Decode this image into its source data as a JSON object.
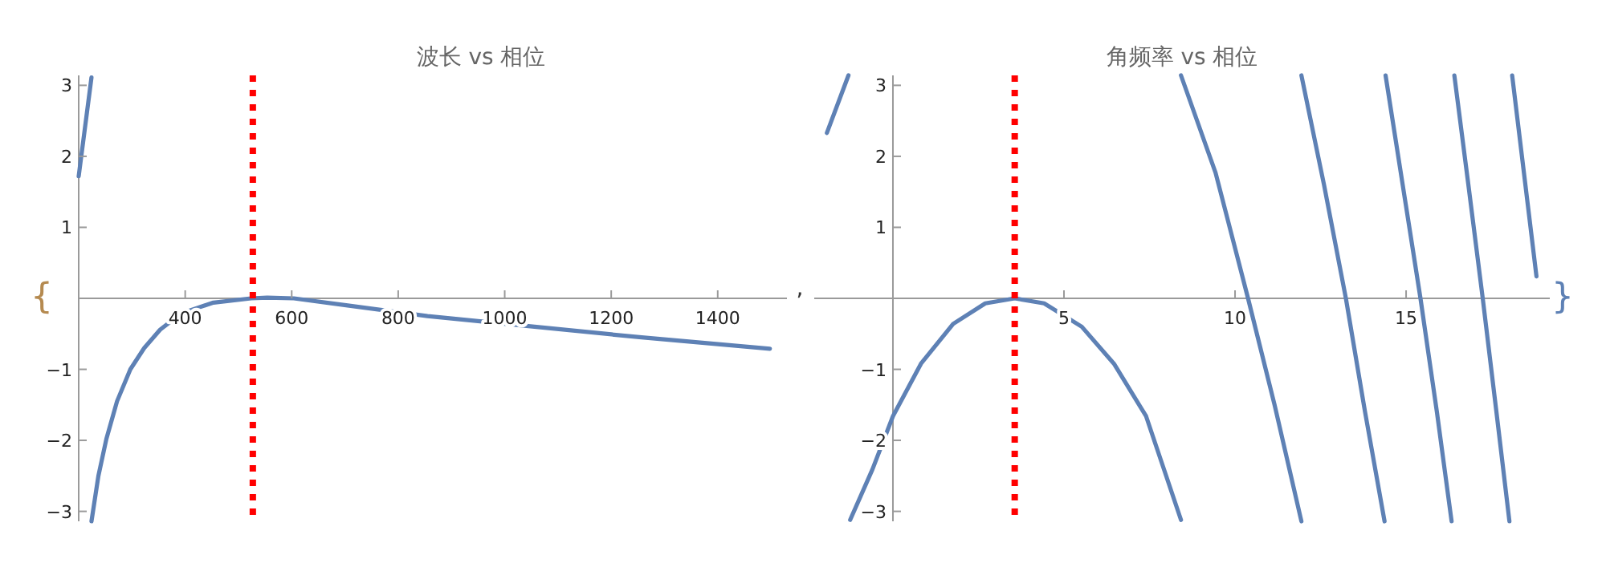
{
  "chart_data": [
    {
      "type": "line",
      "title": "波长 vs 相位",
      "xlim": [
        200,
        1530
      ],
      "ylim": [
        -3.14,
        3.14
      ],
      "xticks": [
        400,
        600,
        800,
        1000,
        1200,
        1400
      ],
      "yticks": [
        -3,
        -2,
        -1,
        1,
        2,
        3
      ],
      "grid": false,
      "series": [
        {
          "color": "#5e81b5",
          "x": [
            200,
            224
          ],
          "values": [
            1.72,
            3.11
          ]
        },
        {
          "color": "#5e81b5",
          "x": [
            224,
            237,
            252,
            272,
            297,
            323,
            353,
            393,
            453,
            524,
            554,
            604,
            705,
            855,
            1056,
            1257,
            1498
          ],
          "values": [
            -3.14,
            -2.5,
            -1.98,
            -1.45,
            -1.0,
            -0.7,
            -0.44,
            -0.21,
            -0.06,
            0.0,
            0.01,
            0.0,
            -0.1,
            -0.25,
            -0.4,
            -0.55,
            -0.71
          ]
        }
      ],
      "ref_lines": [
        {
          "axis": "x",
          "value": 527,
          "color": "#ff0000",
          "line_style": "dotted"
        }
      ],
      "annotations": [
        "{",
        ","
      ]
    },
    {
      "type": "line",
      "title": "角频率 vs 相位",
      "xlim": [
        -2.3,
        19.2
      ],
      "ylim": [
        -3.14,
        3.14
      ],
      "xticks": [
        5,
        10,
        15
      ],
      "yticks": [
        -3,
        -2,
        -1,
        1,
        2,
        3
      ],
      "grid": false,
      "series": [
        {
          "color": "#5e81b5",
          "x": [
            -1.93,
            -1.3
          ],
          "values": [
            2.33,
            3.14
          ]
        },
        {
          "color": "#5e81b5",
          "x": [
            -1.25,
            -0.6,
            0,
            0.82,
            1.76,
            2.7,
            3.56,
            4.42,
            5.52,
            6.46,
            7.4,
            8.42
          ],
          "values": [
            -3.12,
            -2.41,
            -1.66,
            -0.92,
            -0.36,
            -0.07,
            0,
            -0.07,
            -0.4,
            -0.92,
            -1.66,
            -3.12
          ]
        },
        {
          "color": "#5e81b5",
          "x": [
            8.42,
            9.43,
            10.38,
            11.16,
            11.94
          ],
          "values": [
            3.14,
            1.77,
            0,
            -1.51,
            -3.14
          ]
        },
        {
          "color": "#5e81b5",
          "x": [
            11.94,
            12.6,
            13.24,
            13.8,
            14.37
          ],
          "values": [
            3.14,
            1.6,
            0,
            -1.6,
            -3.14
          ]
        },
        {
          "color": "#5e81b5",
          "x": [
            14.4,
            14.9,
            15.42,
            15.9,
            16.33
          ],
          "values": [
            3.14,
            1.6,
            0,
            -1.6,
            -3.14
          ]
        },
        {
          "color": "#5e81b5",
          "x": [
            16.41,
            16.82,
            17.24,
            17.64,
            18.02
          ],
          "values": [
            3.14,
            1.6,
            0,
            -1.6,
            -3.14
          ]
        },
        {
          "color": "#5e81b5",
          "x": [
            18.1,
            18.81
          ],
          "values": [
            3.14,
            0.31
          ]
        }
      ],
      "ref_lines": [
        {
          "axis": "x",
          "value": 3.56,
          "color": "#ff0000",
          "line_style": "dotted"
        }
      ],
      "annotations": [
        "}"
      ]
    }
  ]
}
